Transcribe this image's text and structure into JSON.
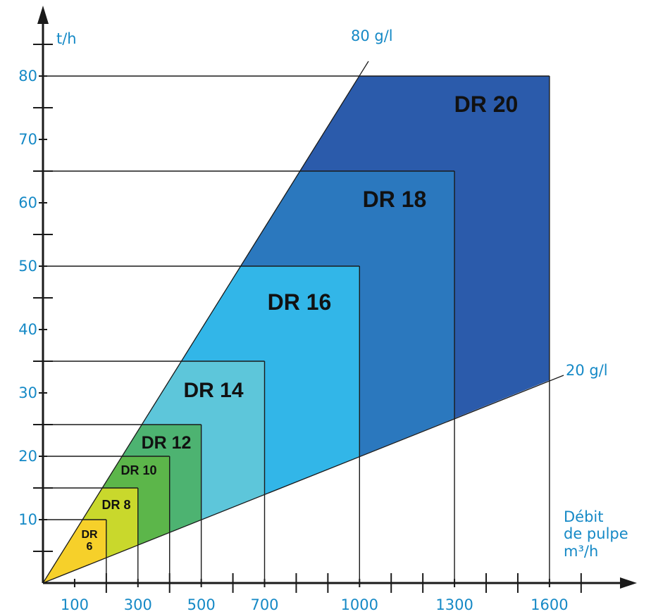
{
  "chart_data": {
    "type": "area",
    "title": "",
    "ylabel": "t/h",
    "xlabel": [
      "Débit",
      "de pulpe",
      "m³/h"
    ],
    "x_ticks": [
      100,
      300,
      500,
      700,
      1000,
      1300,
      1600
    ],
    "y_ticks": [
      10,
      20,
      30,
      40,
      50,
      60,
      70,
      80
    ],
    "lines": [
      {
        "name": "80 g/l",
        "g_per_l": 80
      },
      {
        "name": "20 g/l",
        "g_per_l": 20
      }
    ],
    "zones": [
      {
        "name": "DR 20",
        "lines": [
          "DR 20"
        ],
        "max_flow": 1600,
        "max_tph": 80,
        "color": "#2b5bab"
      },
      {
        "name": "DR 18",
        "lines": [
          "DR 18"
        ],
        "max_flow": 1300,
        "max_tph": 65,
        "color": "#2b78be"
      },
      {
        "name": "DR 16",
        "lines": [
          "DR 16"
        ],
        "max_flow": 1000,
        "max_tph": 50,
        "color": "#32b6e8"
      },
      {
        "name": "DR 14",
        "lines": [
          "DR 14"
        ],
        "max_flow": 700,
        "max_tph": 35,
        "color": "#5dc6da"
      },
      {
        "name": "DR 12",
        "lines": [
          "DR 12"
        ],
        "max_flow": 500,
        "max_tph": 25,
        "color": "#4db371"
      },
      {
        "name": "DR 10",
        "lines": [
          "DR 10"
        ],
        "max_flow": 400,
        "max_tph": 20,
        "color": "#5cb64a"
      },
      {
        "name": "DR 8",
        "lines": [
          "DR 8"
        ],
        "max_flow": 300,
        "max_tph": 15,
        "color": "#c9d82c"
      },
      {
        "name": "DR 6",
        "lines": [
          "DR",
          "6"
        ],
        "max_flow": 200,
        "max_tph": 10,
        "color": "#f6d02a"
      }
    ]
  }
}
